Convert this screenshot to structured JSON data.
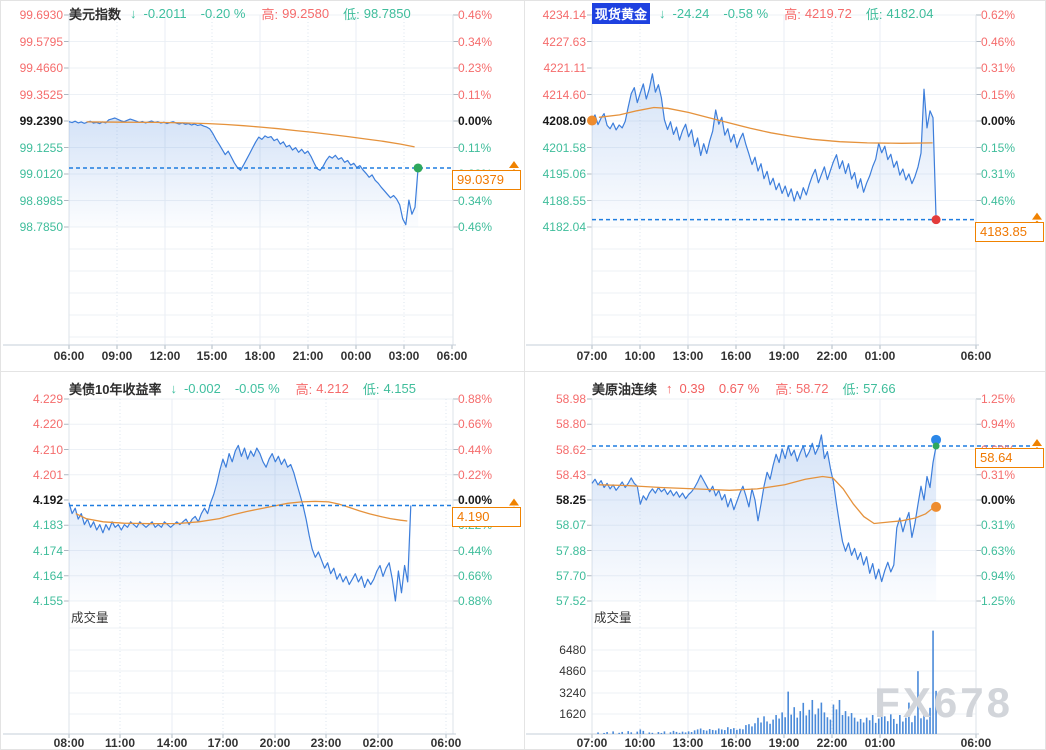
{
  "watermark": "FX678",
  "volume_title": "成交量",
  "chart_data": [
    {
      "id": "usd-index",
      "type": "line",
      "title": "美元指数",
      "selected": false,
      "arrow": "↓",
      "trend": "down",
      "change": "-0.2011",
      "change_pct": "-0.20 %",
      "high_label": "高:",
      "high": "99.2580",
      "low_label": "低:",
      "low": "98.7850",
      "last_price": "99.0379",
      "last_value": 99.0379,
      "axis_max": 99.693,
      "axis_min": 98.785,
      "prev_close": 99.239,
      "left_axis": [
        "99.6930",
        "99.5795",
        "99.4660",
        "99.3525",
        "99.2390",
        "99.1255",
        "99.0120",
        "98.8985",
        "98.7850"
      ],
      "right_axis": [
        "0.46%",
        "0.34%",
        "0.23%",
        "0.11%",
        "0.00%",
        "0.11%",
        "0.23%",
        "0.34%",
        "0.46%"
      ],
      "time_labels": [
        "06:00",
        "09:00",
        "12:00",
        "15:00",
        "18:00",
        "21:00",
        "00:00",
        "03:00",
        "06:00"
      ],
      "tick_offsets": [
        0,
        48,
        96,
        143,
        191,
        239,
        287,
        335,
        383
      ],
      "end_frac": 0.909,
      "dash_extend": false,
      "has_volume_label": false,
      "vol_axis": null,
      "vol_max": null,
      "volume": null,
      "markers": [
        {
          "pos": "end",
          "color": "#2ea85c",
          "value": 99.0379,
          "r": 4.5,
          "on": "price"
        }
      ],
      "price": [
        99.236,
        99.232,
        99.238,
        99.231,
        99.235,
        99.229,
        99.234,
        99.238,
        99.23,
        99.233,
        99.228,
        99.235,
        99.231,
        99.244,
        99.248,
        99.252,
        99.246,
        99.24,
        99.236,
        99.242,
        99.247,
        99.243,
        99.238,
        99.233,
        99.237,
        99.231,
        99.235,
        99.239,
        99.233,
        99.236,
        99.23,
        99.234,
        99.228,
        99.232,
        99.236,
        99.23,
        99.226,
        99.231,
        99.225,
        99.228,
        99.222,
        99.226,
        99.22,
        99.223,
        99.217,
        99.213,
        99.205,
        99.185,
        99.16,
        99.14,
        99.118,
        99.095,
        99.11,
        99.085,
        99.06,
        99.04,
        99.028,
        99.05,
        99.075,
        99.1,
        99.125,
        99.15,
        99.17,
        99.16,
        99.175,
        99.168,
        99.172,
        99.155,
        99.162,
        99.14,
        99.15,
        99.128,
        99.135,
        99.115,
        99.125,
        99.105,
        99.118,
        99.1,
        99.11,
        99.088,
        99.06,
        99.035,
        99.028,
        99.045,
        99.07,
        99.088,
        99.08,
        99.092,
        99.075,
        99.082,
        99.062,
        99.07,
        99.05,
        99.058,
        99.04,
        99.048,
        99.03,
        99.015,
        98.998,
        99.008,
        98.985,
        98.972,
        98.955,
        98.94,
        98.925,
        98.91,
        98.92,
        98.905,
        98.88,
        98.82,
        98.795,
        98.9,
        98.84,
        98.87,
        99.038
      ],
      "ma": [
        [
          0.05,
          99.235
        ],
        [
          0.15,
          99.234
        ],
        [
          0.25,
          99.233
        ],
        [
          0.33,
          99.231
        ],
        [
          0.4,
          99.228
        ],
        [
          0.45,
          99.224
        ],
        [
          0.5,
          99.219
        ],
        [
          0.55,
          99.213
        ],
        [
          0.6,
          99.206
        ],
        [
          0.65,
          99.198
        ],
        [
          0.7,
          99.19
        ],
        [
          0.75,
          99.181
        ],
        [
          0.8,
          99.172
        ],
        [
          0.85,
          99.162
        ],
        [
          0.9,
          99.152
        ],
        [
          0.95,
          99.14
        ],
        [
          0.99,
          99.128
        ]
      ]
    },
    {
      "id": "spot-gold",
      "type": "line",
      "title": "现货黄金",
      "selected": true,
      "arrow": "↓",
      "trend": "down",
      "change": "-24.24",
      "change_pct": "-0.58 %",
      "high_label": "高:",
      "high": "4219.72",
      "low_label": "低:",
      "low": "4182.04",
      "last_price": "4183.85",
      "last_value": 4183.85,
      "axis_max": 4234.14,
      "axis_min": 4182.04,
      "prev_close": 4208.09,
      "left_axis": [
        "4234.14",
        "4227.63",
        "4221.11",
        "4214.60",
        "4208.09",
        "4201.58",
        "4195.06",
        "4188.55",
        "4182.04"
      ],
      "right_axis": [
        "0.62%",
        "0.46%",
        "0.31%",
        "0.15%",
        "0.00%",
        "0.15%",
        "0.31%",
        "0.46%",
        "0.62%"
      ],
      "time_labels": [
        "07:00",
        "10:00",
        "13:00",
        "16:00",
        "19:00",
        "22:00",
        "01:00",
        "06:00"
      ],
      "tick_offsets": [
        0,
        48,
        96,
        144,
        192,
        240,
        288,
        384
      ],
      "end_frac": 0.896,
      "dash_extend": false,
      "has_volume_label": false,
      "vol_axis": null,
      "vol_max": null,
      "volume": null,
      "markers": [
        {
          "pos": "start",
          "color": "#ee8c2e",
          "value": 4208.2,
          "r": 5,
          "on": "price"
        },
        {
          "pos": "end",
          "color": "#e33b3b",
          "value": 4183.85,
          "r": 4.5,
          "on": "price"
        }
      ],
      "price": [
        4208.3,
        4209.6,
        4207.2,
        4208.8,
        4209.9,
        4207.0,
        4206.2,
        4207.6,
        4205.9,
        4207.1,
        4206.4,
        4208.0,
        4211.5,
        4214.8,
        4216.3,
        4212.6,
        4215.0,
        4217.2,
        4213.5,
        4216.0,
        4219.7,
        4215.2,
        4217.0,
        4213.8,
        4208.4,
        4206.0,
        4207.9,
        4204.8,
        4206.6,
        4203.4,
        4205.7,
        4207.3,
        4204.2,
        4205.9,
        4201.8,
        4203.9,
        4199.6,
        4202.5,
        4200.1,
        4203.2,
        4205.6,
        4210.8,
        4207.3,
        4209.0,
        4204.6,
        4206.2,
        4202.9,
        4204.8,
        4201.5,
        4203.6,
        4205.1,
        4202.3,
        4200.0,
        4197.4,
        4199.2,
        4195.8,
        4197.6,
        4193.9,
        4195.7,
        4192.4,
        4194.0,
        4191.2,
        4192.8,
        4190.3,
        4192.1,
        4189.5,
        4191.4,
        4188.4,
        4190.8,
        4188.9,
        4191.7,
        4189.9,
        4192.5,
        4194.6,
        4196.2,
        4192.9,
        4194.9,
        4196.8,
        4193.7,
        4195.9,
        4198.1,
        4199.8,
        4196.4,
        4198.3,
        4195.2,
        4197.6,
        4193.8,
        4195.4,
        4191.6,
        4193.9,
        4190.6,
        4192.8,
        4194.6,
        4196.9,
        4198.7,
        4202.6,
        4200.3,
        4201.9,
        4198.6,
        4199.9,
        4196.7,
        4198.2,
        4194.8,
        4196.3,
        4193.6,
        4195.1,
        4192.7,
        4194.4,
        4196.8,
        4200.2,
        4215.9,
        4206.4,
        4210.6,
        4208.9,
        4183.85
      ],
      "ma": [
        [
          0.02,
          4209.0
        ],
        [
          0.08,
          4209.6
        ],
        [
          0.13,
          4210.6
        ],
        [
          0.18,
          4211.4
        ],
        [
          0.22,
          4211.2
        ],
        [
          0.28,
          4210.2
        ],
        [
          0.34,
          4208.9
        ],
        [
          0.4,
          4207.6
        ],
        [
          0.46,
          4206.3
        ],
        [
          0.52,
          4205.2
        ],
        [
          0.58,
          4204.3
        ],
        [
          0.64,
          4203.6
        ],
        [
          0.72,
          4203.0
        ],
        [
          0.8,
          4202.7
        ],
        [
          0.9,
          4202.6
        ],
        [
          0.99,
          4202.7
        ]
      ]
    },
    {
      "id": "us10y-yield",
      "type": "line",
      "title": "美债10年收益率",
      "selected": false,
      "arrow": "↓",
      "trend": "down",
      "change": "-0.002",
      "change_pct": "-0.05 %",
      "high_label": "高:",
      "high": "4.212",
      "low_label": "低:",
      "low": "4.155",
      "last_price": "4.190",
      "last_value": 4.19,
      "axis_max": 4.229,
      "axis_min": 4.155,
      "prev_close": 4.192,
      "left_axis": [
        "4.229",
        "4.220",
        "4.210",
        "4.201",
        "4.192",
        "4.183",
        "4.174",
        "4.164",
        "4.155"
      ],
      "right_axis": [
        "0.88%",
        "0.66%",
        "0.44%",
        "0.22%",
        "0.00%",
        "0.22%",
        "0.44%",
        "0.66%",
        "0.88%"
      ],
      "time_labels": [
        "08:00",
        "11:00",
        "14:00",
        "17:00",
        "20:00",
        "23:00",
        "02:00",
        "06:00"
      ],
      "tick_offsets": [
        0,
        51,
        103,
        154,
        206,
        257,
        309,
        377
      ],
      "end_frac": 0.89,
      "dash_extend": false,
      "has_volume_label": true,
      "vol_axis": null,
      "vol_max": null,
      "volume": null,
      "markers": [],
      "price": [
        4.191,
        4.187,
        4.189,
        4.185,
        4.187,
        4.183,
        4.185,
        4.182,
        4.184,
        4.181,
        4.183,
        4.18,
        4.183,
        4.181,
        4.184,
        4.182,
        4.183,
        4.181,
        4.183,
        4.182,
        4.184,
        4.183,
        4.182,
        4.184,
        4.183,
        4.182,
        4.183,
        4.184,
        4.182,
        4.183,
        4.182,
        4.184,
        4.183,
        4.182,
        4.183,
        4.184,
        4.183,
        4.184,
        4.185,
        4.183,
        4.185,
        4.186,
        4.184,
        4.187,
        4.189,
        4.187,
        4.191,
        4.194,
        4.198,
        4.203,
        4.207,
        4.204,
        4.209,
        4.206,
        4.21,
        4.212,
        4.208,
        4.211,
        4.207,
        4.21,
        4.208,
        4.211,
        4.209,
        4.206,
        4.204,
        4.207,
        4.209,
        4.206,
        4.208,
        4.205,
        4.207,
        4.204,
        4.205,
        4.202,
        4.198,
        4.194,
        4.19,
        4.185,
        4.179,
        4.174,
        4.171,
        4.173,
        4.17,
        4.167,
        4.169,
        4.165,
        4.167,
        4.163,
        4.165,
        4.162,
        4.164,
        4.161,
        4.163,
        4.165,
        4.162,
        4.164,
        4.16,
        4.163,
        4.161,
        4.163,
        4.166,
        4.168,
        4.164,
        4.167,
        4.169,
        4.163,
        4.155,
        4.166,
        4.158,
        4.168,
        4.162,
        4.19
      ],
      "ma": [
        [
          0.02,
          4.187
        ],
        [
          0.05,
          4.1852
        ],
        [
          0.1,
          4.184
        ],
        [
          0.16,
          4.1835
        ],
        [
          0.24,
          4.1833
        ],
        [
          0.32,
          4.1834
        ],
        [
          0.38,
          4.184
        ],
        [
          0.44,
          4.1852
        ],
        [
          0.48,
          4.1866
        ],
        [
          0.52,
          4.1878
        ],
        [
          0.56,
          4.1888
        ],
        [
          0.6,
          4.1898
        ],
        [
          0.64,
          4.1908
        ],
        [
          0.68,
          4.1913
        ],
        [
          0.72,
          4.1915
        ],
        [
          0.76,
          4.1913
        ],
        [
          0.79,
          4.1905
        ],
        [
          0.82,
          4.1893
        ],
        [
          0.85,
          4.188
        ],
        [
          0.88,
          4.1869
        ],
        [
          0.91,
          4.186
        ],
        [
          0.94,
          4.1852
        ],
        [
          0.97,
          4.1846
        ],
        [
          0.99,
          4.1843
        ]
      ]
    },
    {
      "id": "crude-oil",
      "type": "line",
      "title": "美原油连续",
      "selected": false,
      "arrow": "↑",
      "trend": "up",
      "change": "0.39",
      "change_pct": "0.67 %",
      "high_label": "高:",
      "high": "58.72",
      "low_label": "低:",
      "low": "57.66",
      "last_price": "58.64",
      "last_value": 58.64,
      "axis_max": 58.98,
      "axis_min": 57.52,
      "prev_close": 58.25,
      "left_axis": [
        "58.98",
        "58.80",
        "58.62",
        "58.43",
        "58.25",
        "58.07",
        "57.88",
        "57.70",
        "57.52"
      ],
      "right_axis": [
        "1.25%",
        "0.94%",
        "0.63%",
        "0.31%",
        "0.00%",
        "0.31%",
        "0.63%",
        "0.94%",
        "1.25%"
      ],
      "time_labels": [
        "07:00",
        "10:00",
        "13:00",
        "16:00",
        "19:00",
        "22:00",
        "01:00",
        "06:00"
      ],
      "tick_offsets": [
        0,
        48,
        96,
        144,
        192,
        240,
        288,
        384
      ],
      "end_frac": 0.896,
      "dash_extend": true,
      "has_volume_label": true,
      "vol_axis": [
        "6480",
        "4860",
        "3240",
        "1620"
      ],
      "vol_max": 8100,
      "volume": [
        0,
        0,
        120,
        0,
        80,
        150,
        0,
        200,
        0,
        90,
        160,
        0,
        220,
        130,
        0,
        180,
        350,
        240,
        0,
        120,
        90,
        0,
        150,
        80,
        200,
        0,
        130,
        240,
        160,
        90,
        180,
        120,
        200,
        150,
        280,
        350,
        420,
        300,
        260,
        380,
        310,
        280,
        420,
        350,
        300,
        520,
        380,
        450,
        320,
        400,
        360,
        680,
        750,
        580,
        820,
        1240,
        880,
        1350,
        960,
        780,
        1100,
        1450,
        1180,
        1650,
        1280,
        3240,
        1480,
        2050,
        1250,
        1750,
        2380,
        1420,
        1850,
        2600,
        1500,
        1950,
        2400,
        1650,
        1280,
        1100,
        2250,
        1880,
        2600,
        1450,
        1750,
        1350,
        1600,
        1250,
        950,
        1150,
        880,
        1250,
        1050,
        1450,
        850,
        1180,
        2200,
        1350,
        980,
        1500,
        1150,
        780,
        1450,
        950,
        1250,
        2400,
        900,
        1400,
        4800,
        1200,
        1850,
        1100,
        2000,
        7900,
        3300
      ],
      "markers": [
        {
          "pos": "end",
          "color": "#2b87e8",
          "value": 58.685,
          "r": 5,
          "on": "price"
        },
        {
          "pos": "end",
          "color": "#2ea85c",
          "value": 58.64,
          "r": 3.5,
          "on": "price"
        },
        {
          "pos": "end",
          "color": "#ee8c2e",
          "value": 58.2,
          "r": 5,
          "on": "ma"
        }
      ],
      "price": [
        58.37,
        58.4,
        58.36,
        58.39,
        58.34,
        58.37,
        58.33,
        58.36,
        58.32,
        58.35,
        58.38,
        58.34,
        58.37,
        58.41,
        58.37,
        58.35,
        58.22,
        58.28,
        58.25,
        58.3,
        58.33,
        58.3,
        58.34,
        58.31,
        58.33,
        58.29,
        58.32,
        58.28,
        58.31,
        58.27,
        58.3,
        58.26,
        58.29,
        58.31,
        58.34,
        58.38,
        58.43,
        58.39,
        58.35,
        58.31,
        58.35,
        58.28,
        58.32,
        58.25,
        58.29,
        58.2,
        58.26,
        58.18,
        58.24,
        58.3,
        58.35,
        58.28,
        58.2,
        58.33,
        58.25,
        58.1,
        58.22,
        58.35,
        58.45,
        58.4,
        58.5,
        58.58,
        58.52,
        58.62,
        58.55,
        58.64,
        58.57,
        58.61,
        58.53,
        58.59,
        58.64,
        58.56,
        58.6,
        58.66,
        58.58,
        58.63,
        58.72,
        58.55,
        58.6,
        58.48,
        58.38,
        58.22,
        58.08,
        57.95,
        57.88,
        57.94,
        57.85,
        57.9,
        57.82,
        57.87,
        57.78,
        57.84,
        57.72,
        57.79,
        57.68,
        57.75,
        57.66,
        57.74,
        57.8,
        57.73,
        57.78,
        58.05,
        58.12,
        58.02,
        58.1,
        58.16,
        57.98,
        58.08,
        58.22,
        58.35,
        58.25,
        58.42,
        58.34,
        58.52,
        58.64
      ],
      "ma": [
        [
          0.02,
          58.36
        ],
        [
          0.1,
          58.355
        ],
        [
          0.2,
          58.34
        ],
        [
          0.3,
          58.33
        ],
        [
          0.4,
          58.32
        ],
        [
          0.48,
          58.33
        ],
        [
          0.56,
          58.36
        ],
        [
          0.62,
          58.4
        ],
        [
          0.67,
          58.42
        ],
        [
          0.7,
          58.41
        ],
        [
          0.73,
          58.33
        ],
        [
          0.76,
          58.22
        ],
        [
          0.79,
          58.13
        ],
        [
          0.82,
          58.08
        ],
        [
          0.86,
          58.09
        ],
        [
          0.9,
          58.1
        ],
        [
          0.94,
          58.12
        ],
        [
          0.97,
          58.15
        ],
        [
          0.99,
          58.19
        ]
      ]
    }
  ]
}
